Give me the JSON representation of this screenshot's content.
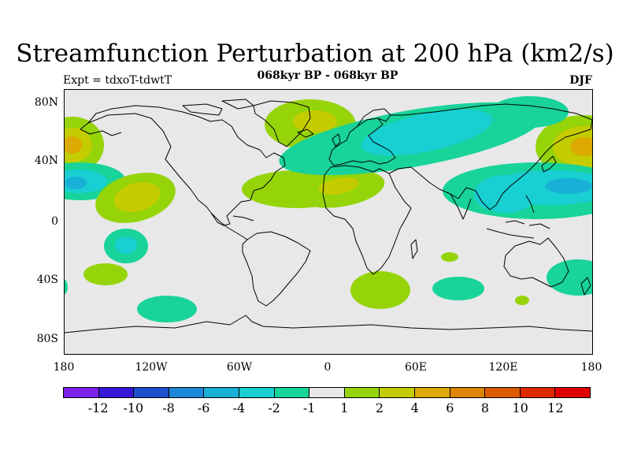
{
  "title": "Streamfunction Perturbation at 200 hPa (km2/s)",
  "subtitle": "068kyr BP - 068kyr BP",
  "left_label": "Expt = tdxoT-tdwtT",
  "right_label": "DJF",
  "map": {
    "ocean_land_color": "#e8e8e8",
    "lat_labels": [
      "80N",
      "40N",
      "0",
      "40S",
      "80S"
    ],
    "lon_labels": [
      "180",
      "120W",
      "60W",
      "0",
      "60E",
      "120E",
      "180"
    ]
  },
  "colorbar": {
    "colors": [
      "#7b22ea",
      "#3718d6",
      "#1e4fcf",
      "#1d87d8",
      "#19b0d7",
      "#18cfd2",
      "#18d39a",
      "#e8e8e8",
      "#96d40a",
      "#c4cc00",
      "#dcaa00",
      "#de8400",
      "#dc5a00",
      "#dd2800",
      "#e00000"
    ],
    "labels": [
      "-12",
      "-10",
      "-8",
      "-6",
      "-4",
      "-2",
      "-1",
      "1",
      "2",
      "4",
      "6",
      "8",
      "10",
      "12"
    ]
  },
  "chart_data": {
    "type": "heatmap",
    "title": "Streamfunction Perturbation at 200 hPa (km2/s)",
    "subtitle": "068kyr BP - 068kyr BP",
    "projection": "cylindrical equidistant",
    "xlim": [
      -180,
      180
    ],
    "ylim": [
      -90,
      90
    ],
    "x_ticks": [
      "180",
      "120W",
      "60W",
      "0",
      "60E",
      "120E",
      "180"
    ],
    "y_ticks": [
      "80N",
      "40N",
      "0",
      "40S",
      "80S"
    ],
    "contour_levels": [
      -12,
      -10,
      -8,
      -6,
      -4,
      -2,
      -1,
      1,
      2,
      4,
      6,
      8,
      10,
      12
    ],
    "anomaly_centers": [
      {
        "lon": 178,
        "lat": 45,
        "min": 2,
        "max": 6
      },
      {
        "lon": -138,
        "lat": 20,
        "min": 2,
        "max": 4
      },
      {
        "lon": -170,
        "lat": 25,
        "min": -4,
        "max": -1
      },
      {
        "lon": -41,
        "lat": 70,
        "min": 2,
        "max": 4
      },
      {
        "lon": -45,
        "lat": 22,
        "min": 1,
        "max": 2
      },
      {
        "lon": 5,
        "lat": 25,
        "min": 2,
        "max": 4
      },
      {
        "lon": 60,
        "lat": 55,
        "min": -4,
        "max": -1
      },
      {
        "lon": 165,
        "lat": 28,
        "min": -4,
        "max": -1
      },
      {
        "lon": 130,
        "lat": 25,
        "min": -2,
        "max": -1
      },
      {
        "lon": -140,
        "lat": -20,
        "min": -4,
        "max": -1
      },
      {
        "lon": -155,
        "lat": -35,
        "min": 1,
        "max": 2
      },
      {
        "lon": -100,
        "lat": -60,
        "min": -2,
        "max": -1
      },
      {
        "lon": 37,
        "lat": -48,
        "min": 1,
        "max": 2
      },
      {
        "lon": 90,
        "lat": -45,
        "min": -2,
        "max": -1
      },
      {
        "lon": 170,
        "lat": -40,
        "min": -2,
        "max": -1
      },
      {
        "lon": 85,
        "lat": -25,
        "min": 1,
        "max": 2
      },
      {
        "lon": 135,
        "lat": -52,
        "min": 1,
        "max": 2
      }
    ]
  }
}
